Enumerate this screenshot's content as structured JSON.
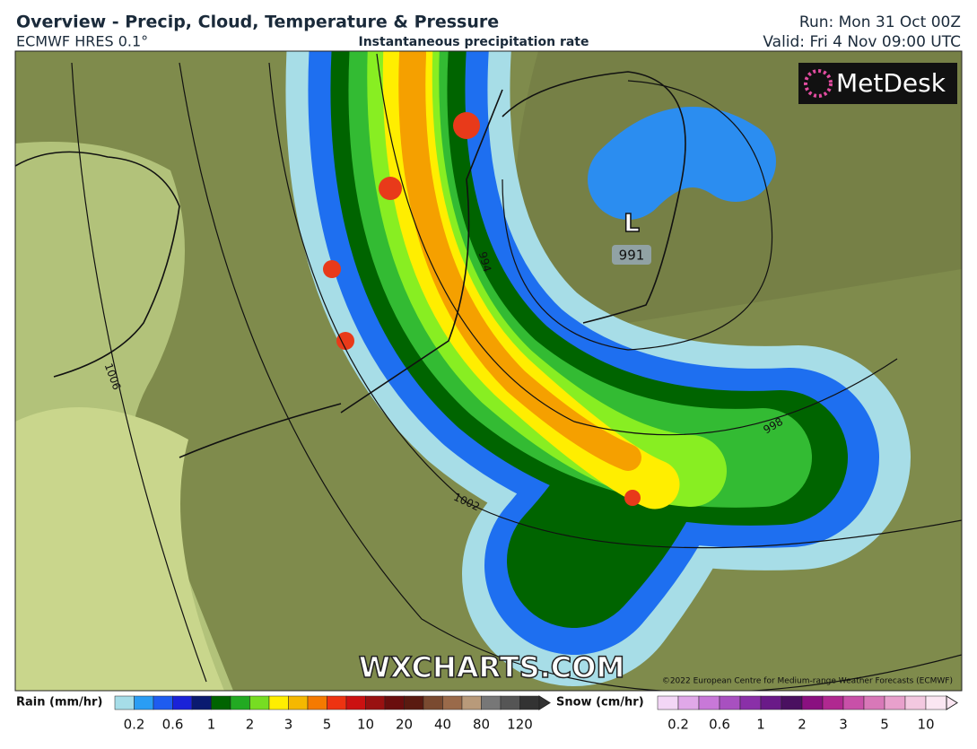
{
  "header": {
    "title": "Overview - Precip, Cloud, Temperature & Pressure",
    "model": "ECMWF HRES 0.1°",
    "subtitle": "Instantaneous precipitation rate",
    "run": "Run: Mon 31 Oct 00Z",
    "valid": "Valid: Fri 4 Nov 09:00 UTC"
  },
  "map": {
    "logo": "MetDesk",
    "low_symbol": "L",
    "low_pressure": "991",
    "isobar_labels": [
      "1006",
      "994",
      "998",
      "1002"
    ],
    "watermark": "WXCHARTS.COM",
    "copyright": "©2022 European Centre for Medium-range Weather Forecasts (ECMWF)"
  },
  "legend": {
    "rain_title": "Rain (mm/hr)",
    "rain_ticks": [
      "0.2",
      "0.6",
      "1",
      "2",
      "3",
      "5",
      "10",
      "20",
      "40",
      "80",
      "120"
    ],
    "snow_title": "Snow (cm/hr)",
    "snow_ticks": [
      "0.2",
      "0.6",
      "1",
      "2",
      "3",
      "5",
      "10"
    ]
  }
}
